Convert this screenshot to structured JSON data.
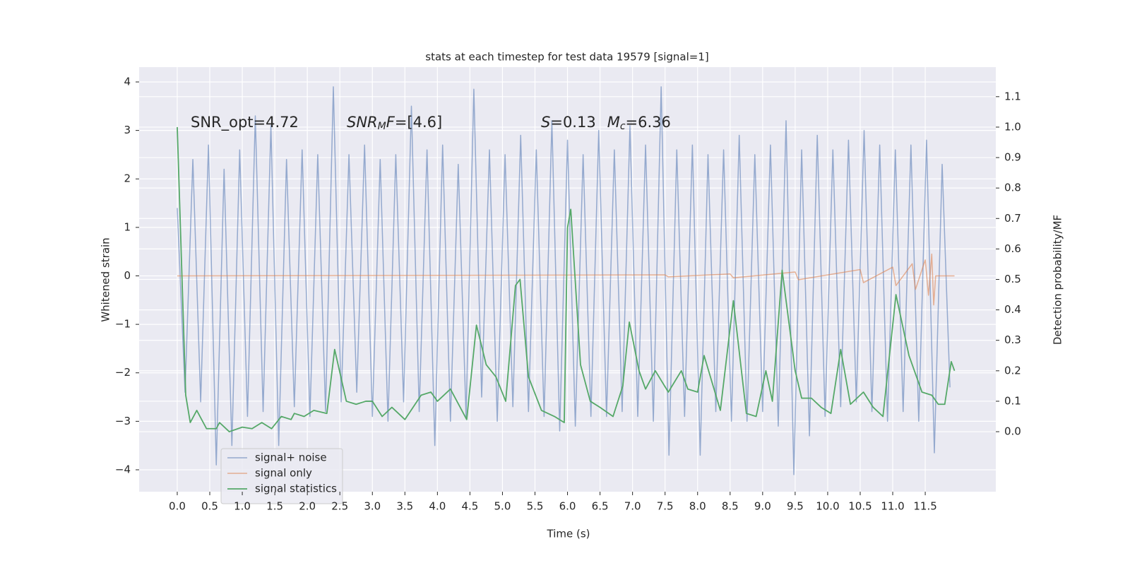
{
  "chart_data": {
    "type": "line",
    "title": "stats at each timestep for test data 19579 [signal=1]",
    "x_label": "Time (s)",
    "y_label": "Whitened strain",
    "y2_label": "Detection probability/MF",
    "annotations": [
      [
        "SNR_opt=4.72"
      ],
      [
        "SNR",
        "M",
        "F",
        "=[4.6]"
      ],
      [
        "S",
        "=0.13",
        "M",
        "c",
        "=6.36"
      ]
    ],
    "xlim": [
      -0.586,
      12.585
    ],
    "xticks": [
      {
        "value": 0,
        "label": "0.0"
      },
      0.5,
      {
        "value": 1,
        "label": "1.0"
      },
      1.5,
      {
        "value": 2,
        "label": "2.0"
      },
      2.5,
      {
        "value": 3,
        "label": "3.0"
      },
      3.5,
      {
        "value": 4,
        "label": "4.0"
      },
      4.5,
      {
        "value": 5,
        "label": "5.0"
      },
      5.5,
      {
        "value": 6,
        "label": "6.0"
      },
      6.5,
      {
        "value": 7,
        "label": "7.0"
      },
      7.5,
      {
        "value": 8,
        "label": "8.0"
      },
      8.5,
      {
        "value": 9,
        "label": "9.0"
      },
      9.5,
      {
        "value": 10,
        "label": "10.0"
      },
      10.5,
      {
        "value": 11,
        "label": "11.0"
      },
      11.5
    ],
    "ylim": [
      -4.452,
      4.306
    ],
    "yticks": [
      {
        "value": -4,
        "label": "−4"
      },
      {
        "value": -3,
        "label": "−3"
      },
      {
        "value": -2,
        "label": "−2"
      },
      {
        "value": -1,
        "label": "−1"
      },
      0,
      1,
      2,
      3,
      4
    ],
    "y2lim": [
      -0.197,
      1.197
    ],
    "y2ticks": [
      {
        "value": 0,
        "label": "0.0"
      },
      0.1,
      0.2,
      0.3,
      0.4,
      0.5,
      0.6,
      0.7,
      0.8,
      0.9,
      {
        "value": 1,
        "label": "1.0"
      },
      1.1
    ],
    "grid": true,
    "legend": "lower left",
    "series": [
      {
        "name": "signal+ noise",
        "color": "#4c72b0",
        "x": [
          0,
          0.12,
          0.24,
          0.36,
          0.48,
          0.6,
          0.72,
          0.84,
          0.96,
          1.08,
          1.2,
          1.32,
          1.44,
          1.56,
          1.68,
          1.8,
          1.92,
          2.04,
          2.16,
          2.28,
          2.4,
          2.52,
          2.64,
          2.76,
          2.88,
          3,
          3.12,
          3.24,
          3.36,
          3.48,
          3.6,
          3.72,
          3.84,
          3.96,
          4.08,
          4.2,
          4.32,
          4.44,
          4.56,
          4.68,
          4.8,
          4.92,
          5.04,
          5.16,
          5.28,
          5.4,
          5.52,
          5.64,
          5.76,
          5.88,
          6,
          6.12,
          6.24,
          6.36,
          6.48,
          6.6,
          6.72,
          6.84,
          6.96,
          7.08,
          7.2,
          7.32,
          7.44,
          7.56,
          7.68,
          7.8,
          7.92,
          8.04,
          8.16,
          8.28,
          8.4,
          8.52,
          8.64,
          8.76,
          8.88,
          9,
          9.12,
          9.24,
          9.36,
          9.48,
          9.6,
          9.72,
          9.84,
          9.96,
          10.08,
          10.2,
          10.32,
          10.44,
          10.56,
          10.68,
          10.8,
          10.92,
          11.04,
          11.16,
          11.28,
          11.4,
          11.52,
          11.64,
          11.76,
          11.88
        ],
        "values": [
          1.4,
          -2.4,
          2.4,
          -2.6,
          2.7,
          -3.9,
          2.2,
          -3.5,
          2.6,
          -2.9,
          3.3,
          -2.8,
          3.1,
          -3.5,
          2.4,
          -2.7,
          2.6,
          -2.9,
          2.5,
          -2.8,
          3.9,
          -2.6,
          2.5,
          -2.4,
          2.7,
          -2.9,
          2.4,
          -3.0,
          2.5,
          -2.6,
          3.5,
          -2.8,
          2.6,
          -3.5,
          2.7,
          -3.0,
          2.3,
          -2.9,
          3.85,
          -2.5,
          2.6,
          -3.0,
          2.5,
          -2.7,
          2.9,
          -2.8,
          2.6,
          -2.9,
          3.2,
          -3.2,
          2.8,
          -3.1,
          2.5,
          -2.9,
          3.0,
          -2.9,
          2.6,
          -2.8,
          3.1,
          -2.9,
          2.7,
          -3.0,
          3.9,
          -3.7,
          2.6,
          -2.9,
          2.7,
          -3.7,
          2.5,
          -2.8,
          2.6,
          -3.0,
          2.9,
          -3.0,
          2.5,
          -2.8,
          2.7,
          -3.1,
          3.2,
          -4.1,
          2.6,
          -3.3,
          2.9,
          -2.9,
          2.6,
          -2.7,
          2.8,
          -2.6,
          3.0,
          -2.8,
          2.7,
          -3.0,
          2.6,
          -2.8,
          2.7,
          -3.0,
          2.8,
          -3.65,
          2.3,
          -2.3
        ]
      },
      {
        "name": "signal only",
        "color": "#dd8452",
        "x": [
          0,
          7.5,
          7.55,
          8.5,
          8.55,
          9.5,
          9.55,
          10.5,
          10.55,
          11.0,
          11.05,
          11.3,
          11.35,
          11.5,
          11.55,
          11.6,
          11.63,
          11.66,
          11.95
        ],
        "values": [
          0,
          0.02,
          -0.02,
          0.04,
          -0.04,
          0.08,
          -0.08,
          0.13,
          -0.14,
          0.18,
          -0.2,
          0.25,
          -0.28,
          0.33,
          -0.4,
          0.45,
          -0.6,
          0,
          0
        ]
      },
      {
        "name": "signal statistics",
        "color": "#55a868",
        "axis": "y2",
        "x": [
          0,
          0.13,
          0.2,
          0.3,
          0.45,
          0.6,
          0.65,
          0.8,
          1.0,
          1.15,
          1.3,
          1.45,
          1.6,
          1.75,
          1.8,
          1.95,
          2.1,
          2.3,
          2.42,
          2.6,
          2.75,
          2.9,
          3.0,
          3.15,
          3.3,
          3.5,
          3.75,
          3.9,
          4.0,
          4.2,
          4.35,
          4.45,
          4.6,
          4.75,
          4.9,
          5.05,
          5.2,
          5.27,
          5.4,
          5.6,
          5.8,
          5.95,
          6.0,
          6.05,
          6.2,
          6.35,
          6.5,
          6.7,
          6.85,
          6.95,
          7.1,
          7.2,
          7.35,
          7.55,
          7.75,
          7.85,
          8.0,
          8.1,
          8.35,
          8.55,
          8.75,
          8.9,
          9.05,
          9.15,
          9.3,
          9.5,
          9.6,
          9.75,
          9.9,
          10.05,
          10.2,
          10.35,
          10.55,
          10.7,
          10.85,
          11.05,
          11.25,
          11.45,
          11.6,
          11.7,
          11.8,
          11.9,
          11.95
        ],
        "values": [
          1.0,
          0.12,
          0.03,
          0.07,
          0.01,
          0.01,
          0.03,
          0.0,
          0.015,
          0.01,
          0.03,
          0.01,
          0.05,
          0.04,
          0.06,
          0.05,
          0.07,
          0.06,
          0.27,
          0.1,
          0.09,
          0.1,
          0.1,
          0.05,
          0.08,
          0.04,
          0.12,
          0.13,
          0.1,
          0.14,
          0.08,
          0.04,
          0.35,
          0.22,
          0.18,
          0.1,
          0.48,
          0.5,
          0.18,
          0.07,
          0.05,
          0.03,
          0.67,
          0.73,
          0.22,
          0.1,
          0.08,
          0.05,
          0.15,
          0.36,
          0.2,
          0.14,
          0.2,
          0.13,
          0.2,
          0.14,
          0.13,
          0.25,
          0.07,
          0.43,
          0.06,
          0.05,
          0.2,
          0.1,
          0.53,
          0.2,
          0.11,
          0.11,
          0.08,
          0.06,
          0.27,
          0.09,
          0.13,
          0.08,
          0.05,
          0.45,
          0.25,
          0.13,
          0.12,
          0.09,
          0.09,
          0.23,
          0.2
        ]
      }
    ]
  }
}
